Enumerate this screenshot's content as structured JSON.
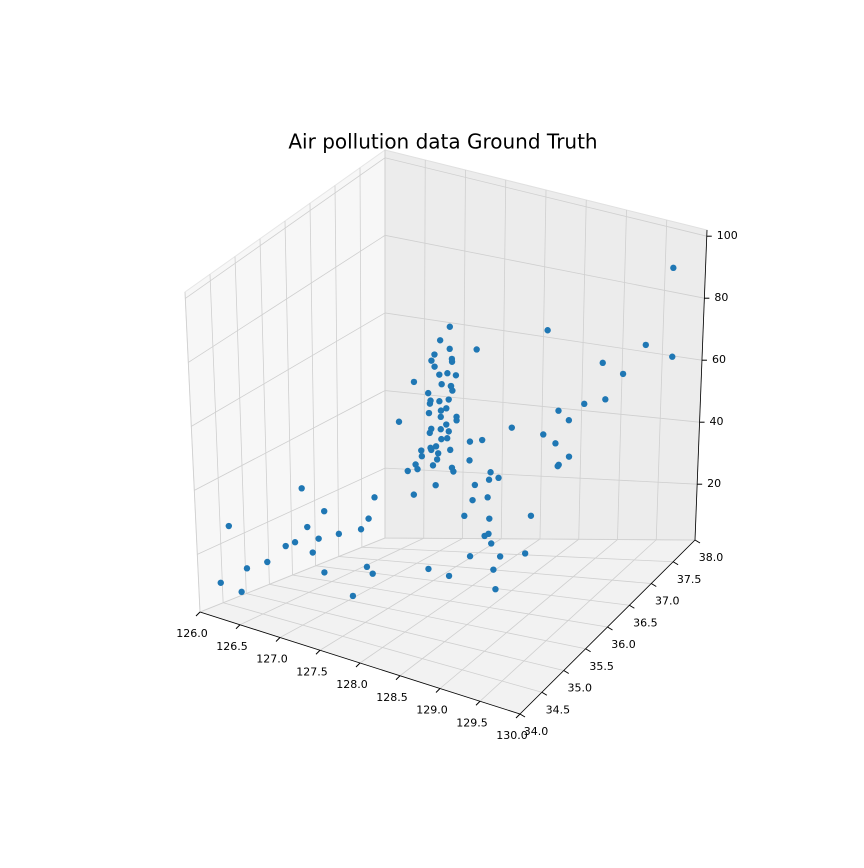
{
  "chart_data": {
    "type": "scatter3d",
    "title": "Air pollution data Ground Truth",
    "color": "#1f77b4",
    "grid": true,
    "xlim": [
      126,
      130
    ],
    "ylim": [
      34,
      38
    ],
    "zlim": [
      2,
      102
    ],
    "xticks": [
      {
        "value": 126,
        "label": "126.0"
      },
      {
        "value": 126.5,
        "label": "126.5"
      },
      {
        "value": 127,
        "label": "127.0"
      },
      {
        "value": 127.5,
        "label": "127.5"
      },
      {
        "value": 128,
        "label": "128.0"
      },
      {
        "value": 128.5,
        "label": "128.5"
      },
      {
        "value": 129,
        "label": "129.0"
      },
      {
        "value": 129.5,
        "label": "129.5"
      },
      {
        "value": 130,
        "label": "130.0"
      }
    ],
    "yticks": [
      {
        "value": 34,
        "label": "34.0"
      },
      {
        "value": 34.5,
        "label": "34.5"
      },
      {
        "value": 35,
        "label": "35.0"
      },
      {
        "value": 35.5,
        "label": "35.5"
      },
      {
        "value": 36,
        "label": "36.0"
      },
      {
        "value": 36.5,
        "label": "36.5"
      },
      {
        "value": 37,
        "label": "37.0"
      },
      {
        "value": 37.5,
        "label": "37.5"
      },
      {
        "value": 38,
        "label": "38.0"
      }
    ],
    "zticks": [
      20,
      40,
      60,
      80,
      100
    ],
    "x": [
      126.85,
      126.9,
      126.95,
      127.0,
      127.05,
      127.1,
      127.15,
      126.88,
      126.92,
      126.98,
      127.02,
      127.08,
      127.12,
      126.8,
      126.83,
      126.97,
      127.03,
      127.06,
      127.11,
      127.18,
      126.9,
      126.94,
      127.0,
      127.04,
      127.09,
      126.86,
      126.99,
      127.07,
      127.14,
      127.2,
      126.75,
      126.7,
      127.25,
      127.3,
      127.35,
      127.4,
      127.5,
      127.45,
      126.65,
      126.6,
      127.0,
      127.1,
      126.95,
      127.05,
      127.15,
      126.9,
      127.0,
      127.2,
      127.3,
      126.8,
      127.4,
      127.38,
      127.42,
      126.85,
      126.9,
      126.8,
      128.6,
      128.55,
      128.65,
      128.58,
      129.05,
      129.0,
      129.1,
      129.08,
      128.98,
      129.3,
      129.35,
      129.25,
      129.36,
      129.4,
      128.0,
      128.2,
      128.9,
      128.5,
      128.7,
      127.1,
      127.15,
      127.5,
      127.45,
      128.2,
      128.7,
      128.4,
      126.4,
      126.7,
      127.7,
      127.5,
      126.1,
      126.05,
      126.3,
      126.5,
      129.9,
      129.5,
      129.6,
      129.7,
      129.8,
      128.1,
      127.9,
      127.8,
      128.3,
      126.6,
      126.5,
      127.0,
      127.3,
      128.9,
      129.2,
      126.2,
      126.4,
      127.6,
      128.8,
      129.0
    ],
    "y": [
      37.5,
      37.55,
      37.6,
      37.5,
      37.55,
      37.52,
      37.48,
      37.58,
      37.45,
      37.52,
      37.62,
      37.5,
      37.56,
      37.45,
      37.6,
      37.57,
      37.48,
      37.6,
      37.5,
      37.55,
      37.65,
      37.4,
      37.7,
      37.45,
      37.58,
      37.52,
      37.48,
      37.63,
      37.42,
      37.5,
      37.4,
      37.45,
      37.3,
      37.35,
      37.2,
      37.6,
      37.3,
      37.0,
      37.4,
      37.3,
      37.3,
      37.25,
      37.35,
      37.2,
      37.1,
      37.7,
      37.75,
      37.8,
      37.9,
      37.65,
      36.35,
      36.3,
      36.4,
      35.15,
      35.2,
      35.1,
      35.85,
      35.9,
      35.8,
      35.88,
      35.15,
      35.2,
      35.1,
      35.25,
      35.18,
      35.55,
      36.0,
      35.5,
      36.05,
      36.2,
      37.35,
      37.75,
      37.75,
      37.5,
      37.4,
      35.8,
      35.85,
      36.6,
      36.65,
      35.2,
      35.25,
      35.3,
      34.8,
      34.9,
      34.85,
      34.75,
      34.3,
      34.6,
      34.4,
      34.2,
      37.5,
      36.8,
      37.0,
      37.3,
      37.7,
      36.9,
      36.5,
      36.9,
      36.0,
      36.0,
      35.5,
      35.0,
      35.3,
      36.5,
      36.3,
      35.9,
      35.2,
      34.9,
      35.4,
      37.2
    ],
    "z": [
      45,
      52,
      38,
      60,
      41,
      35,
      48,
      55,
      30,
      43,
      50,
      37,
      46,
      28,
      53,
      40,
      33,
      57,
      44,
      39,
      49,
      31,
      62,
      36,
      47,
      42,
      29,
      54,
      34,
      51,
      26,
      48,
      32,
      40,
      27,
      58,
      35,
      30,
      24,
      38,
      45,
      33,
      41,
      37,
      29,
      46,
      52,
      25,
      30,
      34,
      35,
      28,
      40,
      22,
      30,
      18,
      42,
      36,
      45,
      30,
      25,
      32,
      20,
      28,
      35,
      38,
      55,
      27,
      48,
      60,
      40,
      65,
      58,
      45,
      33,
      24,
      30,
      36,
      28,
      20,
      26,
      18,
      15,
      22,
      19,
      12,
      10,
      25,
      8,
      18,
      95,
      60,
      66,
      72,
      64,
      30,
      22,
      27,
      33,
      16,
      21,
      14,
      26,
      50,
      44,
      28,
      17,
      20,
      31,
      52
    ]
  }
}
